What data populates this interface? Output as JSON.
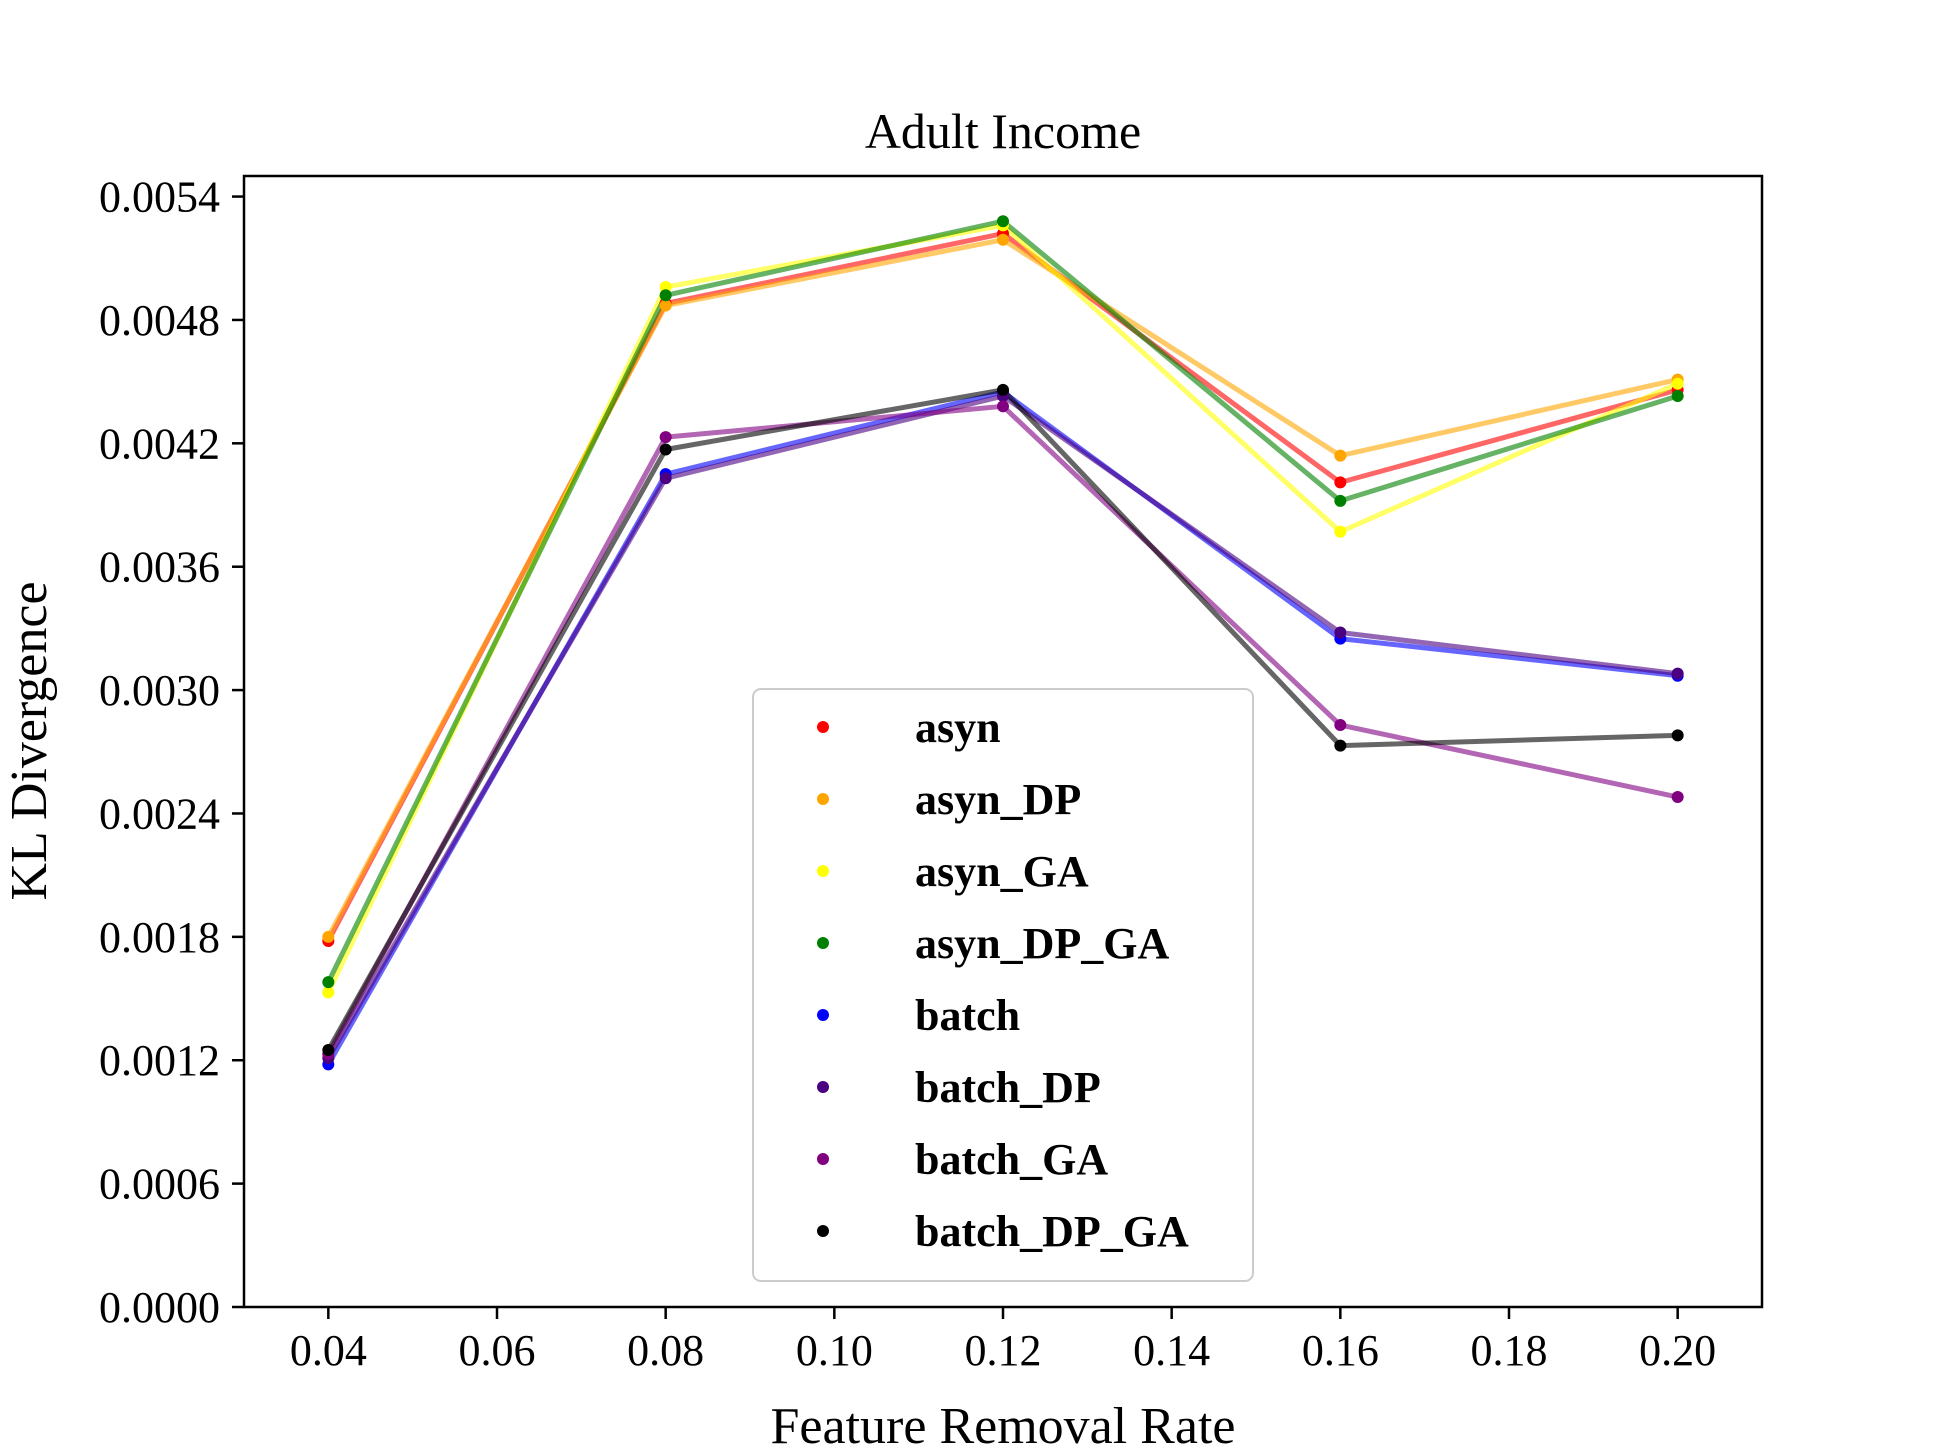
{
  "chart_data": {
    "type": "line",
    "title": "Adult Income",
    "xlabel": "Feature Removal Rate",
    "ylabel": "KL Divergence",
    "xlim": [
      0.03,
      0.21
    ],
    "ylim": [
      0.0,
      0.0055
    ],
    "x_ticks": [
      "0.04",
      "0.06",
      "0.08",
      "0.10",
      "0.12",
      "0.14",
      "0.16",
      "0.18",
      "0.20"
    ],
    "y_ticks": [
      "0.0000",
      "0.0006",
      "0.0012",
      "0.0018",
      "0.0024",
      "0.0030",
      "0.0036",
      "0.0042",
      "0.0048",
      "0.0054"
    ],
    "grid": false,
    "legend_position": "lower-center",
    "x": [
      0.04,
      0.08,
      0.12,
      0.16,
      0.2
    ],
    "series": [
      {
        "name": "asyn",
        "color": "#ff0000",
        "values": [
          0.00178,
          0.00488,
          0.00522,
          0.00401,
          0.00446
        ]
      },
      {
        "name": "asyn_DP",
        "color": "#ffa500",
        "values": [
          0.0018,
          0.00487,
          0.00519,
          0.00414,
          0.00451
        ]
      },
      {
        "name": "asyn_GA",
        "color": "#ffff00",
        "values": [
          0.00153,
          0.00496,
          0.00526,
          0.00377,
          0.00449
        ]
      },
      {
        "name": "asyn_DP_GA",
        "color": "#008000",
        "values": [
          0.00158,
          0.00492,
          0.00528,
          0.00392,
          0.00443
        ]
      },
      {
        "name": "batch",
        "color": "#0000ff",
        "values": [
          0.00118,
          0.00405,
          0.00445,
          0.00325,
          0.00307
        ]
      },
      {
        "name": "batch_DP",
        "color": "#4b0082",
        "values": [
          0.00121,
          0.00403,
          0.00443,
          0.00328,
          0.00308
        ]
      },
      {
        "name": "batch_GA",
        "color": "#800080",
        "values": [
          0.00123,
          0.00423,
          0.00438,
          0.00283,
          0.00248
        ]
      },
      {
        "name": "batch_DP_GA",
        "color": "#000000",
        "values": [
          0.00125,
          0.00417,
          0.00446,
          0.00273,
          0.00278
        ]
      }
    ]
  }
}
